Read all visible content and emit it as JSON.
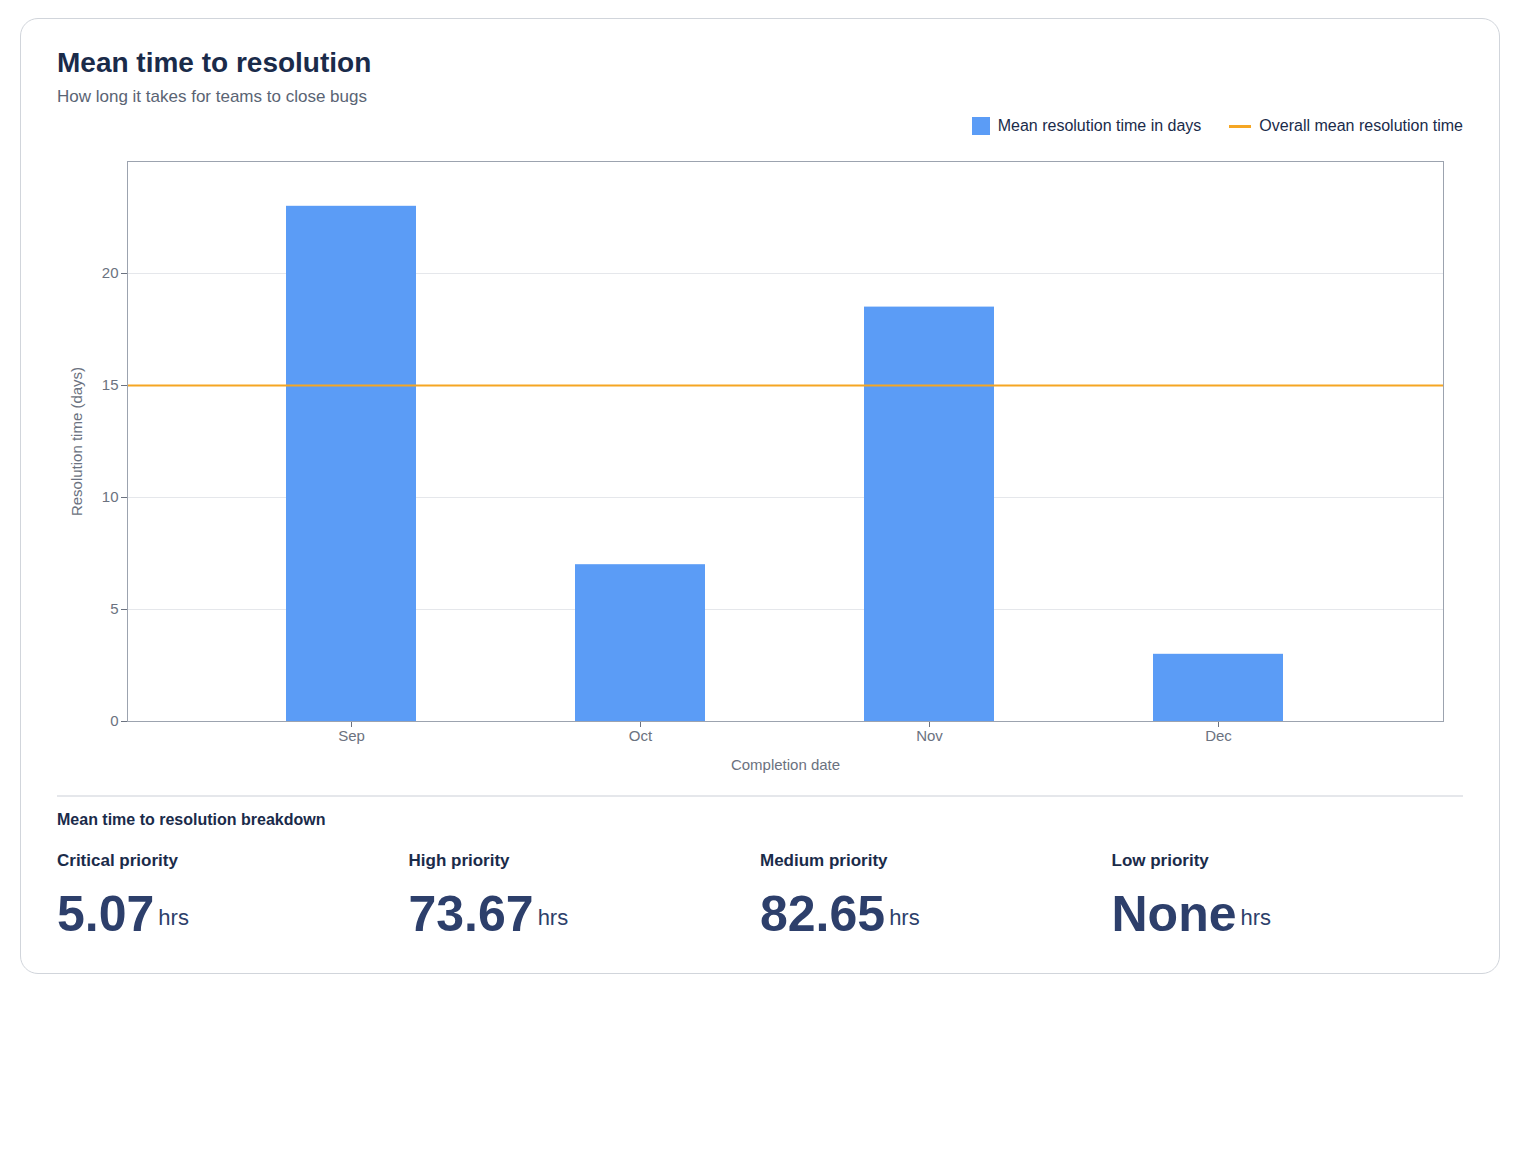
{
  "chart_data": {
    "type": "bar",
    "title": "Mean time to resolution",
    "subtitle": "How long it takes for teams to close bugs",
    "categories": [
      "Sep",
      "Oct",
      "Nov",
      "Dec"
    ],
    "series": [
      {
        "name": "Mean resolution time in days",
        "color": "#5B9CF6",
        "values": [
          23,
          7,
          18.5,
          3
        ]
      }
    ],
    "hlines": [
      {
        "name": "Overall mean resolution time",
        "value": 15,
        "color": "#F5A623"
      }
    ],
    "xlabel": "Completion date",
    "ylabel": "Resolution time (days)",
    "ylim": [
      0,
      25
    ],
    "yticks": [
      0,
      5,
      10,
      15,
      20
    ],
    "grid": true,
    "legend": "upper right",
    "breakdown": {
      "title": "Mean time to resolution breakdown",
      "unit": "hrs",
      "items": [
        {
          "label": "Critical priority",
          "value": 5.07
        },
        {
          "label": "High priority",
          "value": 73.67
        },
        {
          "label": "Medium priority",
          "value": 82.65
        },
        {
          "label": "Low priority",
          "value": null,
          "value_label": "None"
        }
      ]
    }
  }
}
